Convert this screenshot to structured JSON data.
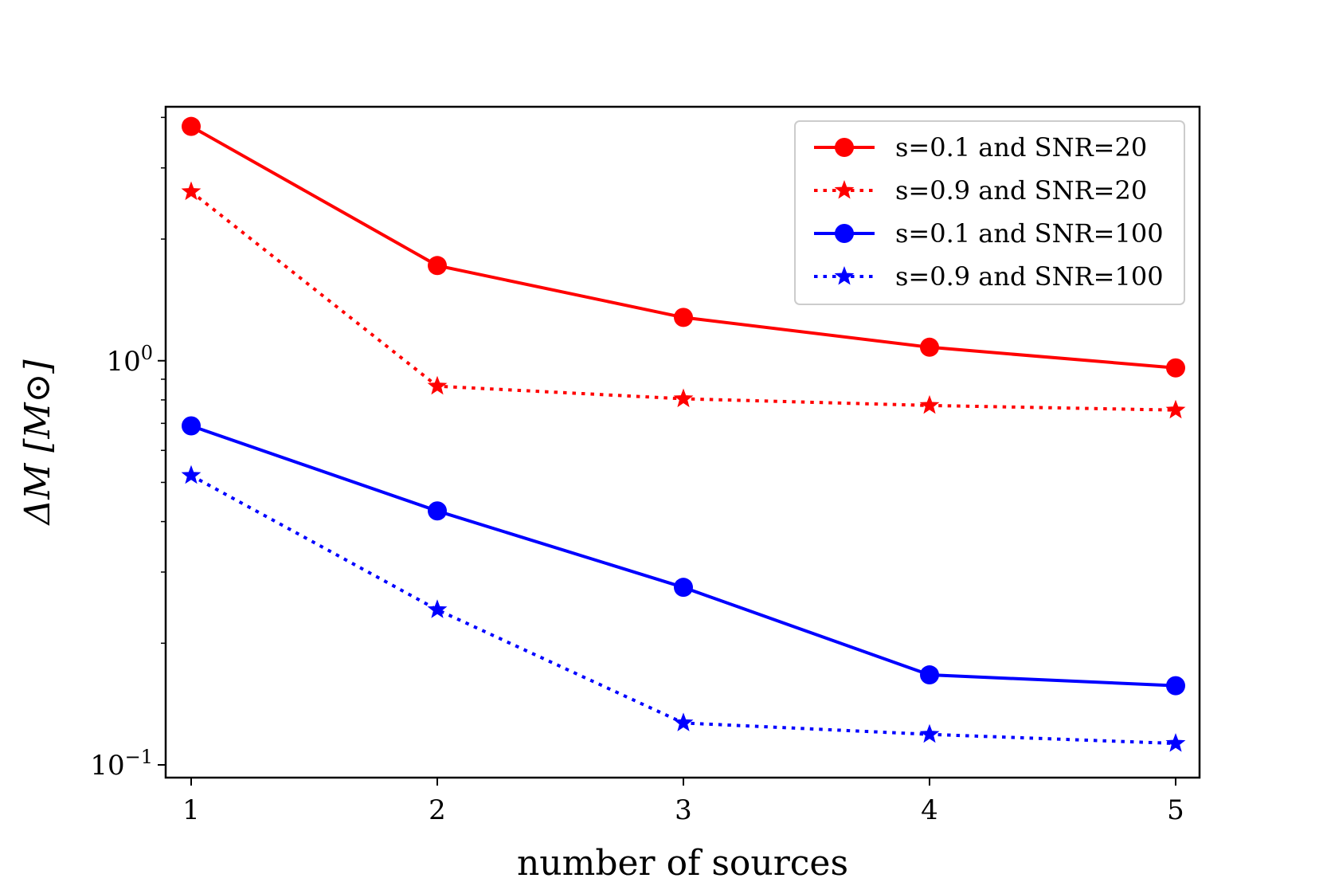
{
  "chart_data": {
    "type": "line",
    "xlabel": "number of sources",
    "ylabel": "ΔM [M⊙]",
    "x": [
      1,
      2,
      3,
      4,
      5
    ],
    "x_ticks": [
      1,
      2,
      3,
      4,
      5
    ],
    "x_tick_labels": [
      "1",
      "2",
      "3",
      "4",
      "5"
    ],
    "yscale": "log",
    "ylim": [
      0.093,
      4.25
    ],
    "y_major_ticks": [
      {
        "value": 0.1,
        "base": "10",
        "exp": "−1"
      },
      {
        "value": 1,
        "base": "10",
        "exp": "0"
      }
    ],
    "y_minor_ticks": [
      0.2,
      0.3,
      0.4,
      0.5,
      0.6,
      0.7,
      0.8,
      0.9,
      2,
      3,
      4
    ],
    "grid": false,
    "legend_position": "top-right",
    "series": [
      {
        "name": "s=0.1 and SNR=20",
        "color": "#ff0000",
        "linestyle": "solid",
        "marker": "circle",
        "values": [
          3.8,
          1.72,
          1.28,
          1.08,
          0.96
        ]
      },
      {
        "name": "s=0.9 and SNR=20",
        "color": "#ff0000",
        "linestyle": "dotted",
        "marker": "star",
        "values": [
          2.62,
          0.865,
          0.805,
          0.775,
          0.755
        ]
      },
      {
        "name": "s=0.1 and SNR=100",
        "color": "#0000ff",
        "linestyle": "solid",
        "marker": "circle",
        "values": [
          0.69,
          0.425,
          0.275,
          0.167,
          0.157
        ]
      },
      {
        "name": "s=0.9 and SNR=100",
        "color": "#0000ff",
        "linestyle": "dotted",
        "marker": "star",
        "values": [
          0.52,
          0.242,
          0.127,
          0.119,
          0.113
        ]
      }
    ]
  }
}
